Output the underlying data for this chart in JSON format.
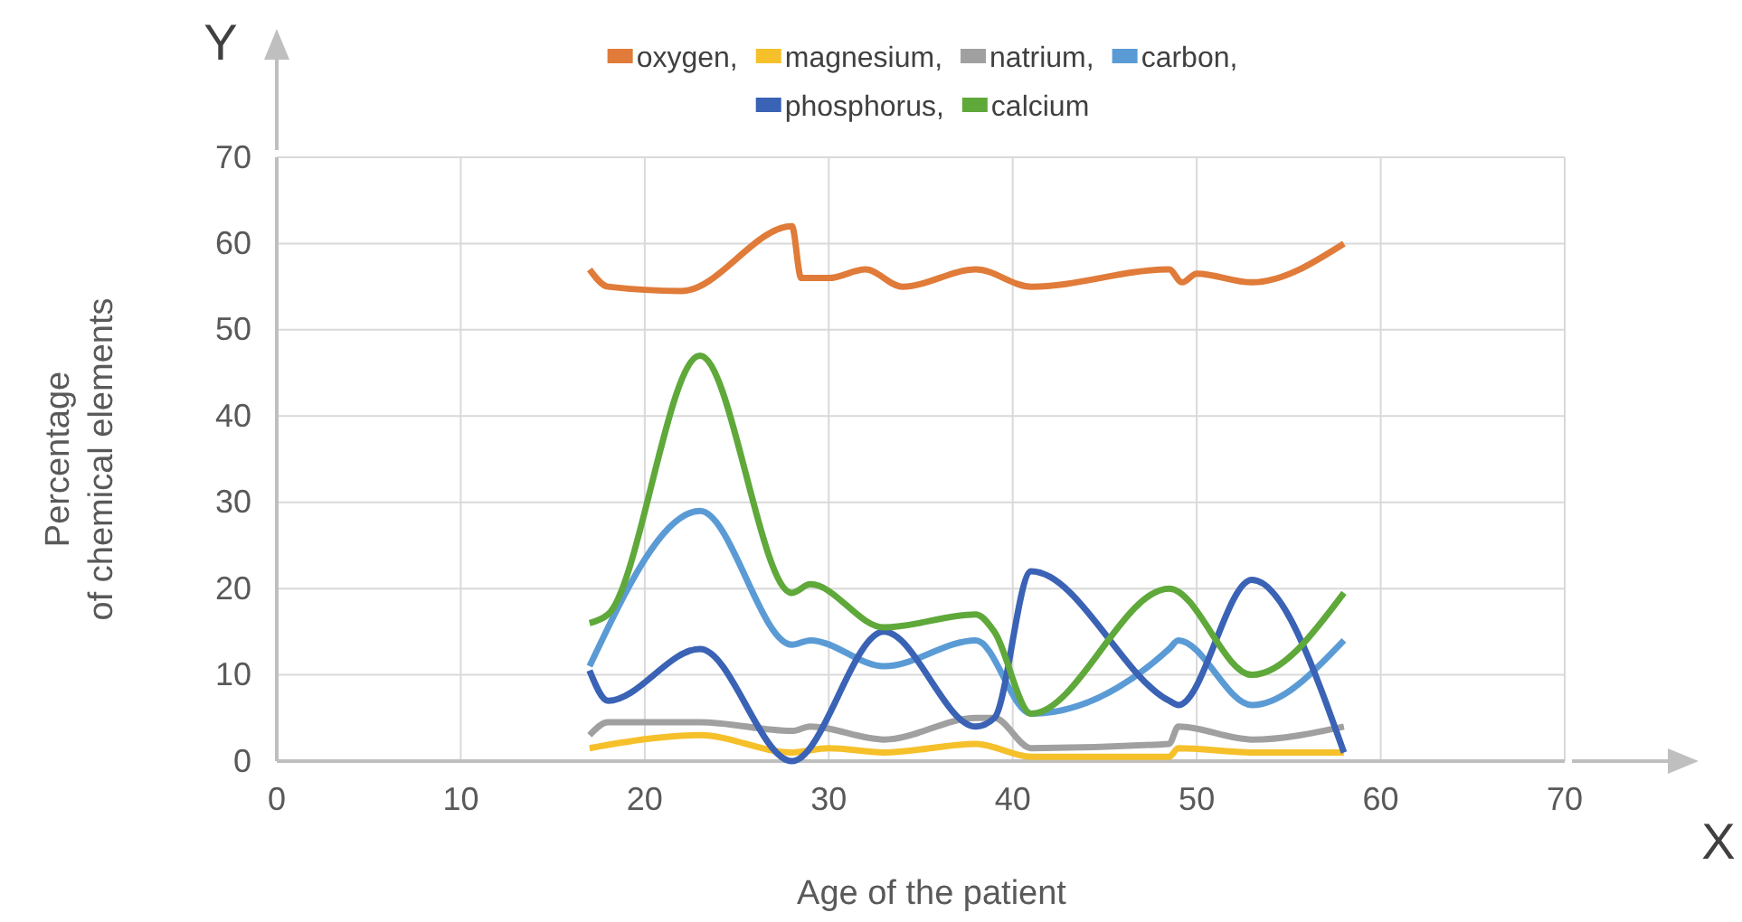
{
  "chart_data": {
    "type": "line",
    "xlabel": "Age of the patient",
    "ylabel": "Percentage of chemical elements",
    "xlim": [
      0,
      70
    ],
    "xticks": [
      0,
      10,
      20,
      30,
      40,
      50,
      60,
      70
    ],
    "ylim": [
      0,
      70
    ],
    "yticks": [
      0,
      10,
      20,
      30,
      40,
      50,
      60,
      70
    ],
    "grid": true,
    "legend": "top",
    "marker": "none",
    "line_style": "solid",
    "annotations": [
      "Y",
      "X"
    ],
    "series": [
      {
        "name": "oxygen,",
        "color": "#e07b39",
        "x": [
          17,
          18,
          22,
          28,
          28.5,
          30,
          32,
          34,
          38,
          41,
          48.5,
          49.2,
          50,
          53,
          58
        ],
        "values": [
          57,
          55,
          54.5,
          62,
          56,
          56,
          57,
          55,
          57,
          55,
          57,
          55.5,
          56.5,
          55.5,
          60
        ]
      },
      {
        "name": "magnesium,",
        "color": "#f5c02a",
        "x": [
          17,
          23,
          28,
          30,
          33,
          38,
          41,
          48.5,
          49,
          53,
          58
        ],
        "values": [
          1.5,
          3,
          1,
          1.5,
          1,
          2,
          0.5,
          0.5,
          1.5,
          1,
          1
        ]
      },
      {
        "name": "natrium,",
        "color": "#a0a0a0",
        "x": [
          17,
          18,
          23,
          28,
          29,
          33,
          38,
          39,
          41,
          48.5,
          49,
          53,
          58
        ],
        "values": [
          3,
          4.5,
          4.5,
          3.5,
          4,
          2.5,
          5,
          5,
          1.5,
          2,
          4,
          2.5,
          4
        ]
      },
      {
        "name": "carbon,",
        "color": "#5b9bd5",
        "x": [
          17,
          23,
          28,
          29,
          33,
          38,
          41,
          48.5,
          49,
          53,
          58
        ],
        "values": [
          11,
          29,
          13.5,
          14,
          11,
          14,
          5.5,
          13,
          14,
          6.5,
          14
        ]
      },
      {
        "name": "phosphorus,",
        "color": "#3a62b5",
        "x": [
          17,
          18,
          23,
          28,
          33,
          38,
          39,
          41,
          48.5,
          49,
          53,
          58
        ],
        "values": [
          10.5,
          7,
          13,
          0,
          15,
          4,
          5,
          22,
          7,
          6.5,
          21,
          1
        ]
      },
      {
        "name": "calcium",
        "color": "#5fa83a",
        "x": [
          17,
          18,
          23,
          28,
          29,
          33,
          38,
          39,
          41,
          48.5,
          53,
          58
        ],
        "values": [
          16,
          17,
          47,
          19.5,
          20.5,
          15.5,
          17,
          15,
          5.5,
          20,
          10,
          19.5
        ]
      }
    ]
  }
}
